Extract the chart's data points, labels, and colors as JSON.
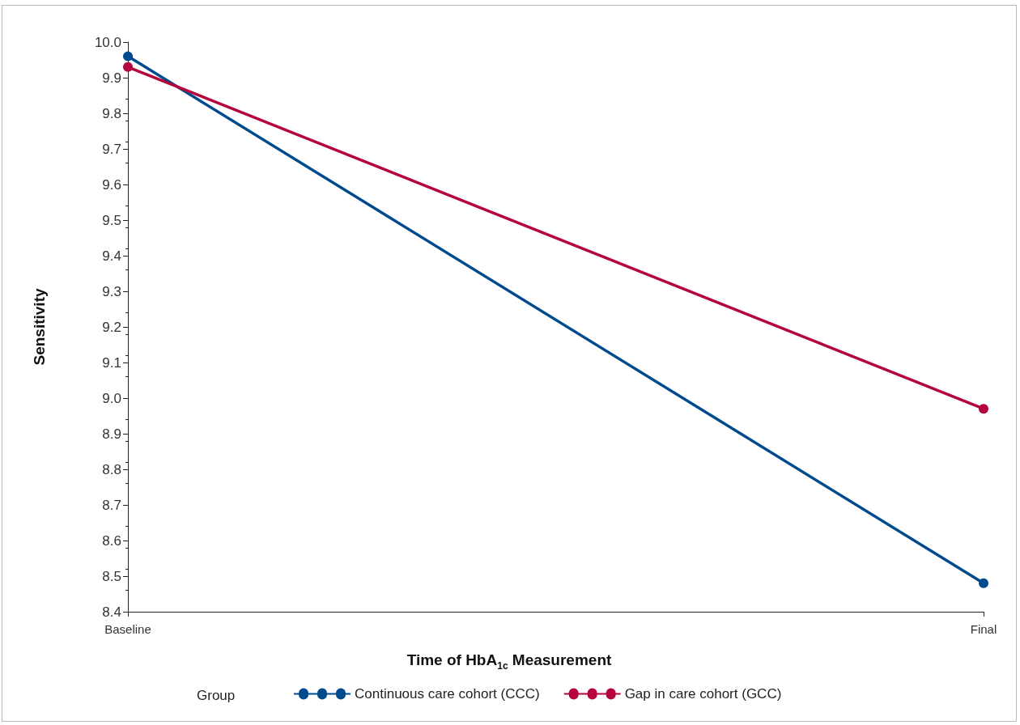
{
  "chart_data": {
    "type": "line",
    "xlabel": "Time of HbA$_{1c}$ Measurement",
    "ylabel": "Sensitivity",
    "legend_title": "Group",
    "categories": [
      "Baseline",
      "Final"
    ],
    "series": [
      {
        "name": "Continuous care cohort (CCC)",
        "color": "#004b8d",
        "values": [
          9.96,
          8.48
        ]
      },
      {
        "name": "Gap in care cohort (GCC)",
        "color": "#b5053d",
        "values": [
          9.93,
          8.97
        ]
      }
    ],
    "ylim": [
      8.4,
      10.0
    ],
    "yticks": [
      {
        "value": 8.4,
        "label": "8.4"
      },
      {
        "value": 8.5,
        "label": "8.5"
      },
      {
        "value": 8.6,
        "label": "8.6"
      },
      {
        "value": 8.7,
        "label": "8.7"
      },
      {
        "value": 8.8,
        "label": "8.8"
      },
      {
        "value": 8.9,
        "label": "8.9"
      },
      {
        "value": 9.0,
        "label": "9.0"
      },
      {
        "value": 9.1,
        "label": "9.1"
      },
      {
        "value": 9.2,
        "label": "9.2"
      },
      {
        "value": 9.3,
        "label": "9.3"
      },
      {
        "value": 9.4,
        "label": "9.4"
      },
      {
        "value": 9.5,
        "label": "9.5"
      },
      {
        "value": 9.6,
        "label": "9.6"
      },
      {
        "value": 9.7,
        "label": "9.7"
      },
      {
        "value": 9.8,
        "label": "9.8"
      },
      {
        "value": 9.9,
        "label": "9.9"
      },
      {
        "value": 10.0,
        "label": "10.0"
      }
    ],
    "grid": false,
    "legend": "bottom",
    "marker": "circle",
    "line_style": "solid"
  }
}
